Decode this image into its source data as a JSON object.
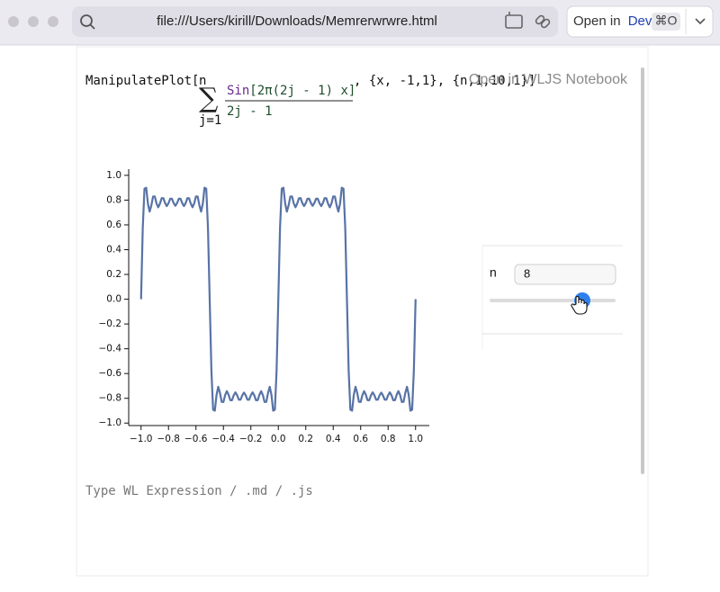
{
  "browser": {
    "url": "file:///Users/kirill/Downloads/Memrerwrwre.html",
    "open_button": {
      "prefix": "Open in",
      "app": "Dev",
      "shortcut": "⌘O"
    }
  },
  "notebook": {
    "overlay": "Open in WLJS Notebook",
    "cell": {
      "head": "ManipulatePlot[",
      "sum_upper": "n",
      "sum_symbol": "∑",
      "sum_lower": "j=1",
      "numerator_fn": "Sin",
      "numerator_arg": "[2π(2j - 1) x]",
      "denominator": "2j - 1",
      "tail": ", {x, -1,1}, {n,1,10,1}]"
    },
    "output": {
      "control": {
        "label": "n",
        "value": 8
      },
      "chart_data": {
        "type": "line",
        "x": [
          -1,
          -0.9875,
          -0.975,
          -0.9625,
          -0.95,
          -0.9375,
          -0.925,
          -0.9125,
          -0.9,
          -0.8875,
          -0.875,
          -0.8625,
          -0.85,
          -0.8375,
          -0.825,
          -0.8125,
          -0.8,
          -0.7875,
          -0.775,
          -0.7625,
          -0.75,
          -0.7375,
          -0.725,
          -0.7125,
          -0.7,
          -0.6875,
          -0.675,
          -0.6625,
          -0.65,
          -0.6375,
          -0.625,
          -0.6125,
          -0.6,
          -0.5875,
          -0.575,
          -0.5625,
          -0.55,
          -0.5375,
          -0.525,
          -0.5125,
          -0.5,
          -0.4875,
          -0.475,
          -0.4625,
          -0.45,
          -0.4375,
          -0.425,
          -0.4125,
          -0.4,
          -0.3875,
          -0.375,
          -0.3625,
          -0.35,
          -0.3375,
          -0.325,
          -0.3125,
          -0.3,
          -0.2875,
          -0.275,
          -0.2625,
          -0.25,
          -0.2375,
          -0.225,
          -0.2125,
          -0.2,
          -0.1875,
          -0.175,
          -0.1625,
          -0.15,
          -0.1375,
          -0.125,
          -0.1125,
          -0.1,
          -0.0875,
          -0.075,
          -0.0625,
          -0.05,
          -0.0375,
          -0.025,
          -0.0125,
          0,
          0.0125,
          0.025,
          0.0375,
          0.05,
          0.0625,
          0.075,
          0.0875,
          0.1,
          0.1125,
          0.125,
          0.1375,
          0.15,
          0.1625,
          0.175,
          0.1875,
          0.2,
          0.2125,
          0.225,
          0.2375,
          0.25,
          0.2625,
          0.275,
          0.2875,
          0.3,
          0.3125,
          0.325,
          0.3375,
          0.35,
          0.3625,
          0.375,
          0.3875,
          0.4,
          0.4125,
          0.425,
          0.4375,
          0.45,
          0.4625,
          0.475,
          0.4875,
          0.5,
          0.5125,
          0.525,
          0.5375,
          0.55,
          0.5625,
          0.575,
          0.5875,
          0.6,
          0.6125,
          0.625,
          0.6375,
          0.65,
          0.6625,
          0.675,
          0.6875,
          0.7,
          0.7125,
          0.725,
          0.7375,
          0.75,
          0.7625,
          0.775,
          0.7875,
          0.8,
          0.8125,
          0.825,
          0.8375,
          0.85,
          0.8625,
          0.875,
          0.8875,
          0.9,
          0.9125,
          0.925,
          0.9375,
          0.95,
          0.9625,
          0.975,
          0.9875,
          1
        ],
        "series": [
          {
            "color": "#5873a6",
            "values": [
              0,
              0.576,
              0.892,
              0.9,
              0.772,
              0.707,
              0.757,
              0.829,
              0.83,
              0.774,
              0.742,
              0.771,
              0.815,
              0.816,
              0.776,
              0.752,
              0.775,
              0.811,
              0.811,
              0.776,
              0.754,
              0.776,
              0.811,
              0.811,
              0.775,
              0.752,
              0.776,
              0.816,
              0.815,
              0.771,
              0.742,
              0.774,
              0.83,
              0.829,
              0.757,
              0.707,
              0.772,
              0.9,
              0.892,
              0.576,
              0,
              -0.576,
              -0.892,
              -0.9,
              -0.772,
              -0.707,
              -0.757,
              -0.829,
              -0.83,
              -0.774,
              -0.742,
              -0.771,
              -0.815,
              -0.816,
              -0.776,
              -0.752,
              -0.775,
              -0.811,
              -0.811,
              -0.776,
              -0.754,
              -0.776,
              -0.811,
              -0.811,
              -0.775,
              -0.752,
              -0.776,
              -0.816,
              -0.815,
              -0.771,
              -0.742,
              -0.774,
              -0.83,
              -0.829,
              -0.757,
              -0.707,
              -0.772,
              -0.9,
              -0.892,
              -0.576,
              0,
              0.576,
              0.892,
              0.9,
              0.772,
              0.707,
              0.757,
              0.829,
              0.83,
              0.774,
              0.742,
              0.771,
              0.815,
              0.816,
              0.776,
              0.752,
              0.775,
              0.811,
              0.811,
              0.776,
              0.754,
              0.776,
              0.811,
              0.811,
              0.775,
              0.752,
              0.776,
              0.816,
              0.815,
              0.771,
              0.742,
              0.774,
              0.83,
              0.829,
              0.757,
              0.707,
              0.772,
              0.9,
              0.892,
              0.576,
              0,
              -0.576,
              -0.892,
              -0.9,
              -0.772,
              -0.707,
              -0.757,
              -0.829,
              -0.83,
              -0.774,
              -0.742,
              -0.771,
              -0.815,
              -0.816,
              -0.776,
              -0.752,
              -0.775,
              -0.811,
              -0.811,
              -0.776,
              -0.754,
              -0.776,
              -0.811,
              -0.811,
              -0.775,
              -0.752,
              -0.776,
              -0.816,
              -0.815,
              -0.771,
              -0.742,
              -0.774,
              -0.83,
              -0.829,
              -0.757,
              -0.707,
              -0.772,
              -0.9,
              -0.892,
              -0.576,
              0
            ]
          }
        ],
        "xlim": [
          -1.09,
          1.1
        ],
        "ylim": [
          -1.02,
          1.05
        ],
        "xticks": [
          {
            "value": -1,
            "label": "−1.0"
          },
          {
            "value": -0.8,
            "label": "−0.8"
          },
          {
            "value": -0.6,
            "label": "−0.6"
          },
          {
            "value": -0.4,
            "label": "−0.4"
          },
          {
            "value": -0.2,
            "label": "−0.2"
          },
          {
            "value": 0,
            "label": "0.0"
          },
          {
            "value": 0.2,
            "label": "0.2"
          },
          {
            "value": 0.4,
            "label": "0.4"
          },
          {
            "value": 0.6,
            "label": "0.6"
          },
          {
            "value": 0.8,
            "label": "0.8"
          },
          {
            "value": 1,
            "label": "1.0"
          }
        ],
        "yticks": [
          {
            "value": -1,
            "label": "−1.0"
          },
          {
            "value": -0.8,
            "label": "−0.8"
          },
          {
            "value": -0.6,
            "label": "−0.6"
          },
          {
            "value": -0.4,
            "label": "−0.4"
          },
          {
            "value": -0.2,
            "label": "−0.2"
          },
          {
            "value": 0,
            "label": "0.0"
          },
          {
            "value": 0.2,
            "label": "0.2"
          },
          {
            "value": 0.4,
            "label": "0.4"
          },
          {
            "value": 0.6,
            "label": "0.6"
          },
          {
            "value": 0.8,
            "label": "0.8"
          },
          {
            "value": 1,
            "label": "1.0"
          }
        ],
        "grid": false
      }
    },
    "placeholder": "Type WL Expression / .md / .js"
  }
}
